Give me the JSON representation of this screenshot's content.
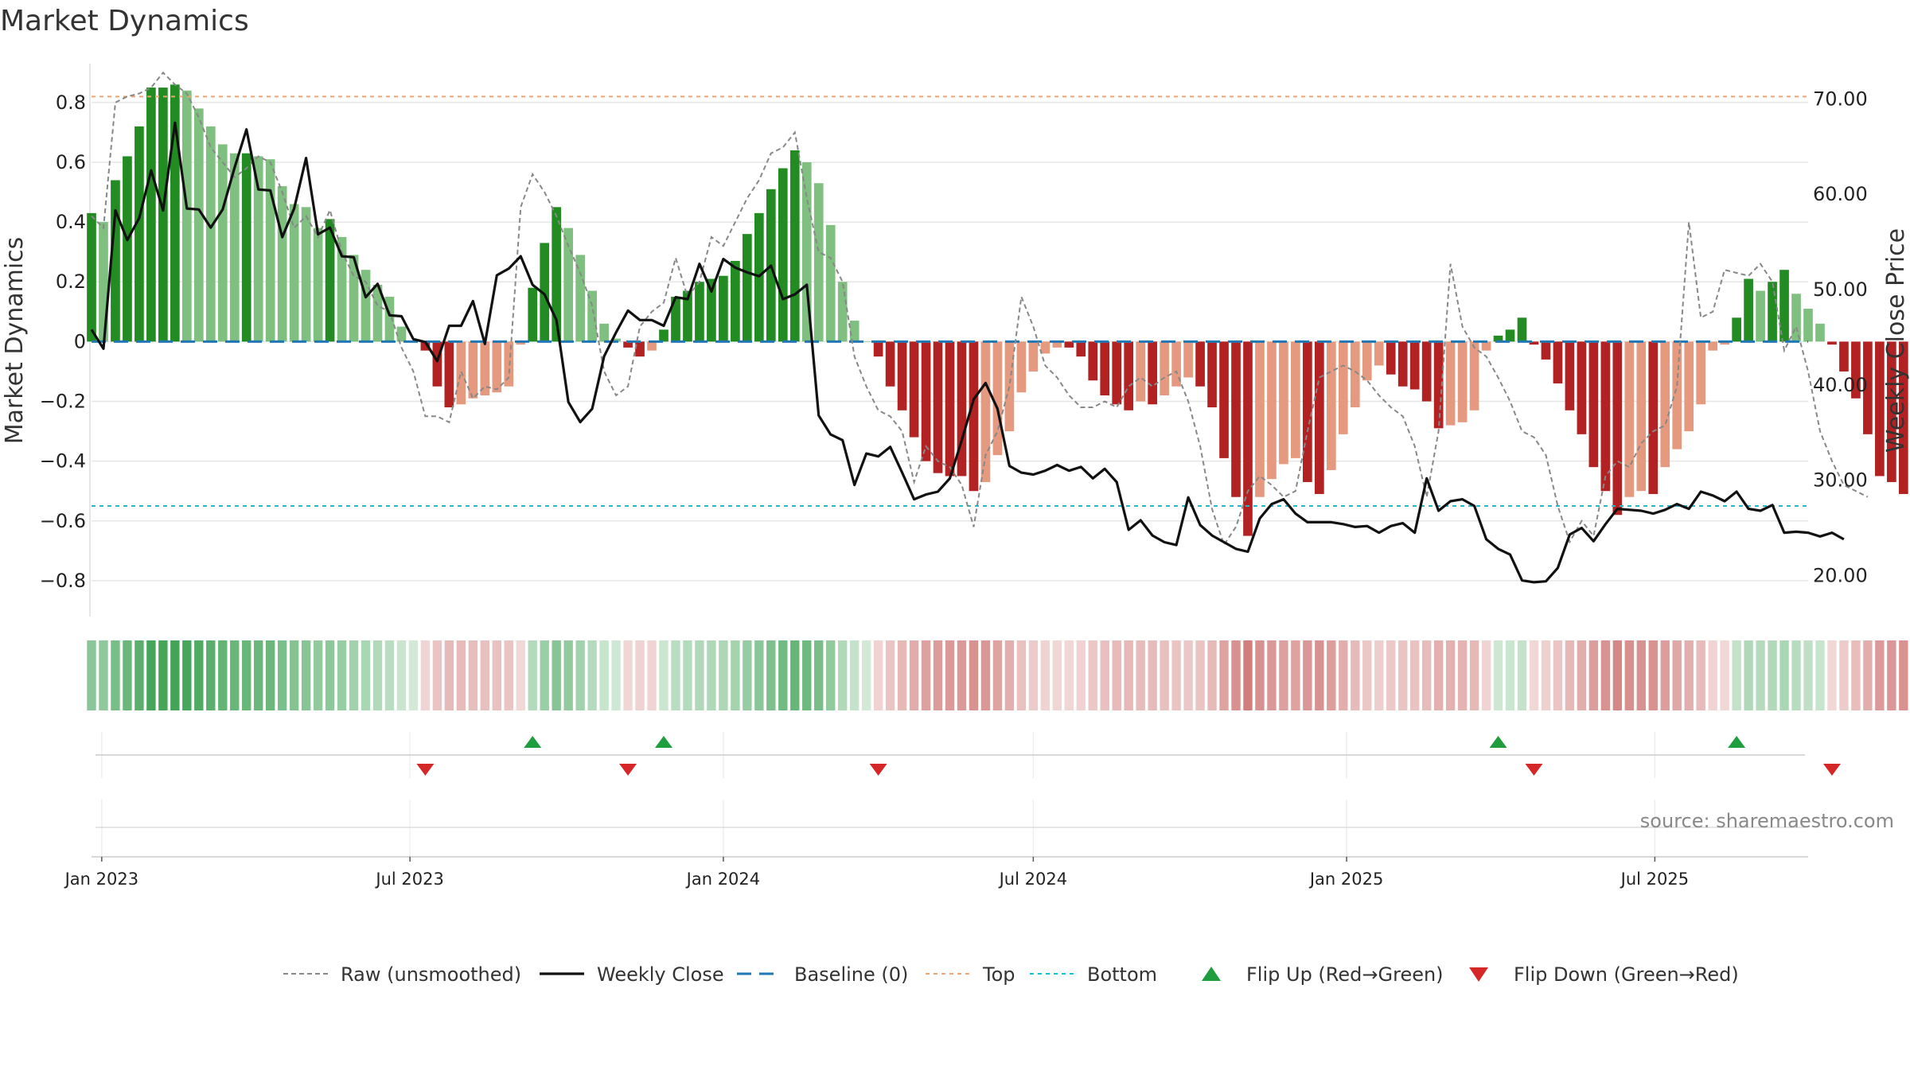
{
  "chart_data": {
    "type": "bar",
    "title": "Market Dynamics",
    "ylabel": "Market Dynamics",
    "y2label": "Weekly Close Price",
    "source": "source: sharemaestro.com",
    "ylim": [
      -0.92,
      0.93
    ],
    "y2lim": [
      15.7,
      73.7
    ],
    "yticks": [
      {
        "value": 0.8,
        "label": "0.8"
      },
      {
        "value": 0.6,
        "label": "0.6"
      },
      {
        "value": 0.4,
        "label": "0.4"
      },
      {
        "value": 0.2,
        "label": "0.2"
      },
      {
        "value": 0,
        "label": "0"
      },
      {
        "value": -0.2,
        "label": "−0.2"
      },
      {
        "value": -0.4,
        "label": "−0.4"
      },
      {
        "value": -0.6,
        "label": "−0.6"
      },
      {
        "value": -0.8,
        "label": "−0.8"
      }
    ],
    "y2ticks": [
      {
        "value": 70,
        "label": "70.00"
      },
      {
        "value": 60,
        "label": "60.00"
      },
      {
        "value": 50,
        "label": "50.00"
      },
      {
        "value": 40,
        "label": "40.00"
      },
      {
        "value": 30,
        "label": "30.00"
      },
      {
        "value": 20,
        "label": "20.00"
      }
    ],
    "start_date": "2022-12-26",
    "xlim": [
      "2022-12-26",
      "2025-09-29"
    ],
    "xticks": [
      {
        "date": "2023-01-01",
        "label": "Jan 2023"
      },
      {
        "date": "2023-07-01",
        "label": "Jul 2023"
      },
      {
        "date": "2024-01-01",
        "label": "Jan 2024"
      },
      {
        "date": "2024-07-01",
        "label": "Jul 2024"
      },
      {
        "date": "2025-01-01",
        "label": "Jan 2025"
      },
      {
        "date": "2025-07-01",
        "label": "Jul 2025"
      }
    ],
    "top_line": 0.82,
    "bottom_line": -0.55,
    "baseline": 0,
    "dynamics": [
      0.43,
      0.4,
      0.54,
      0.62,
      0.72,
      0.85,
      0.85,
      0.86,
      0.84,
      0.78,
      0.72,
      0.66,
      0.63,
      0.63,
      0.62,
      0.61,
      0.52,
      0.46,
      0.45,
      0.38,
      0.41,
      0.35,
      0.29,
      0.24,
      0.19,
      0.15,
      0.05,
      0.0,
      -0.03,
      -0.15,
      -0.22,
      -0.21,
      -0.19,
      -0.18,
      -0.17,
      -0.15,
      -0.01,
      0.18,
      0.33,
      0.45,
      0.38,
      0.29,
      0.17,
      0.06,
      0.01,
      -0.02,
      -0.05,
      -0.03,
      0.04,
      0.15,
      0.17,
      0.2,
      0.21,
      0.22,
      0.27,
      0.36,
      0.43,
      0.51,
      0.58,
      0.64,
      0.6,
      0.53,
      0.39,
      0.2,
      0.07,
      0.0,
      -0.05,
      -0.15,
      -0.23,
      -0.32,
      -0.4,
      -0.44,
      -0.45,
      -0.45,
      -0.5,
      -0.47,
      -0.38,
      -0.3,
      -0.17,
      -0.1,
      -0.04,
      -0.02,
      -0.02,
      -0.05,
      -0.13,
      -0.18,
      -0.21,
      -0.23,
      -0.2,
      -0.21,
      -0.18,
      -0.15,
      -0.12,
      -0.15,
      -0.22,
      -0.39,
      -0.52,
      -0.65,
      -0.52,
      -0.46,
      -0.41,
      -0.39,
      -0.47,
      -0.51,
      -0.43,
      -0.31,
      -0.22,
      -0.13,
      -0.08,
      -0.11,
      -0.15,
      -0.16,
      -0.2,
      -0.29,
      -0.28,
      -0.27,
      -0.23,
      -0.03,
      0.02,
      0.04,
      0.08,
      -0.01,
      -0.06,
      -0.14,
      -0.23,
      -0.31,
      -0.42,
      -0.5,
      -0.58,
      -0.52,
      -0.5,
      -0.51,
      -0.42,
      -0.36,
      -0.3,
      -0.21,
      -0.03,
      -0.01,
      0.08,
      0.21,
      0.17,
      0.2,
      0.24,
      0.16,
      0.11,
      0.06,
      -0.01,
      -0.1,
      -0.19,
      -0.31,
      -0.45,
      -0.47,
      -0.51
    ],
    "raw": [
      0.42,
      0.38,
      0.8,
      0.82,
      0.83,
      0.85,
      0.9,
      0.86,
      0.83,
      0.75,
      0.65,
      0.6,
      0.55,
      0.58,
      0.62,
      0.6,
      0.5,
      0.38,
      0.42,
      0.35,
      0.44,
      0.3,
      0.22,
      0.2,
      0.12,
      0.1,
      -0.02,
      -0.1,
      -0.25,
      -0.25,
      -0.27,
      -0.1,
      -0.19,
      -0.15,
      -0.16,
      -0.12,
      0.45,
      0.56,
      0.5,
      0.42,
      0.32,
      0.23,
      0.12,
      -0.1,
      -0.18,
      -0.15,
      0.05,
      0.1,
      0.13,
      0.28,
      0.15,
      0.2,
      0.35,
      0.32,
      0.4,
      0.48,
      0.54,
      0.63,
      0.65,
      0.7,
      0.48,
      0.3,
      0.28,
      0.2,
      -0.05,
      -0.15,
      -0.23,
      -0.25,
      -0.3,
      -0.47,
      -0.35,
      -0.4,
      -0.42,
      -0.48,
      -0.62,
      -0.38,
      -0.3,
      -0.15,
      0.15,
      0.05,
      -0.08,
      -0.12,
      -0.18,
      -0.22,
      -0.22,
      -0.2,
      -0.22,
      -0.15,
      -0.12,
      -0.15,
      -0.12,
      -0.1,
      -0.2,
      -0.35,
      -0.56,
      -0.68,
      -0.62,
      -0.5,
      -0.45,
      -0.48,
      -0.52,
      -0.5,
      -0.3,
      -0.12,
      -0.1,
      -0.08,
      -0.1,
      -0.13,
      -0.18,
      -0.22,
      -0.25,
      -0.35,
      -0.52,
      -0.3,
      0.26,
      0.05,
      -0.02,
      -0.05,
      -0.12,
      -0.2,
      -0.3,
      -0.32,
      -0.38,
      -0.55,
      -0.67,
      -0.6,
      -0.65,
      -0.45,
      -0.4,
      -0.42,
      -0.34,
      -0.3,
      -0.28,
      -0.15,
      0.4,
      0.08,
      0.1,
      0.24,
      0.23,
      0.22,
      0.26,
      0.2,
      -0.03,
      0.05,
      -0.1,
      -0.3,
      -0.4,
      -0.48,
      -0.5,
      -0.52
    ],
    "close": [
      45.8,
      43.8,
      58.3,
      55.2,
      57.5,
      62.5,
      58.3,
      67.5,
      58.5,
      58.4,
      56.5,
      58.4,
      62.8,
      66.8,
      60.5,
      60.4,
      55.5,
      58.5,
      63.8,
      55.8,
      56.5,
      53.5,
      53.4,
      49.2,
      50.6,
      47.3,
      47.2,
      44.8,
      44.5,
      42.5,
      46.2,
      46.2,
      48.8,
      44.3,
      51.5,
      52.2,
      53.5,
      50.5,
      49.5,
      46.8,
      38.2,
      36.1,
      37.5,
      43.0,
      45.5,
      47.8,
      46.8,
      46.8,
      46.2,
      49.2,
      49.0,
      52.7,
      49.8,
      53.2,
      52.3,
      51.8,
      51.4,
      52.5,
      49.0,
      49.5,
      50.5,
      36.8,
      34.8,
      34.2,
      29.5,
      32.8,
      32.5,
      33.5,
      30.8,
      28.0,
      28.5,
      28.8,
      30.2,
      34.2,
      38.5,
      40.2,
      37.5,
      31.5,
      30.8,
      30.6,
      31.0,
      31.6,
      31.0,
      31.4,
      30.2,
      31.2,
      29.8,
      24.8,
      25.8,
      24.2,
      23.5,
      23.2,
      28.2,
      25.3,
      24.2,
      23.5,
      22.8,
      22.5,
      26.0,
      27.5,
      28.0,
      26.5,
      25.6,
      25.6,
      25.6,
      25.4,
      25.1,
      25.2,
      24.5,
      25.2,
      25.5,
      24.5,
      30.2,
      26.8,
      27.8,
      28.0,
      27.3,
      23.8,
      22.8,
      22.2,
      19.5,
      19.3,
      19.4,
      20.8,
      24.3,
      25.0,
      23.6,
      25.4,
      27.0,
      26.9,
      26.8,
      26.5,
      26.9,
      27.5,
      27.0,
      28.8,
      28.4,
      27.8,
      28.8,
      27.0,
      26.8,
      27.4,
      24.5,
      24.6,
      24.5,
      24.1,
      24.5,
      23.8
    ]
  },
  "legend": {
    "items": [
      {
        "label": "Raw (unsmoothed)",
        "key": "raw"
      },
      {
        "label": "Weekly Close",
        "key": "close"
      },
      {
        "label": "Baseline (0)",
        "key": "baseline"
      },
      {
        "label": "Top",
        "key": "top"
      },
      {
        "label": "Bottom",
        "key": "bottom"
      },
      {
        "label": "Flip Up (Red→Green)",
        "key": "flip_up"
      },
      {
        "label": "Flip Down (Green→Red)",
        "key": "flip_down"
      }
    ]
  },
  "colors": {
    "green_strong": "#228b22",
    "green_light": "#7fbf7f",
    "red_strong": "#b22222",
    "red_light": "#e59a80",
    "baseline": "#1f77b4",
    "top": "#f4a46a",
    "bottom": "#17becf",
    "raw": "#888888",
    "close": "#111111",
    "flip_up": "#1e9e3e",
    "flip_down": "#d62728",
    "grid": "#e6e6e6"
  }
}
